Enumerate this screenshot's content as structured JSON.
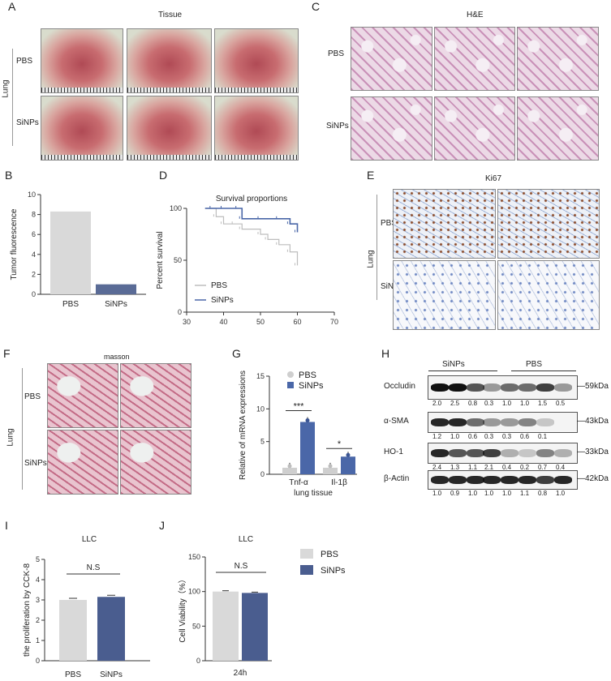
{
  "panels": {
    "A": "A",
    "B": "B",
    "C": "C",
    "D": "D",
    "E": "E",
    "F": "F",
    "G": "G",
    "H": "H",
    "I": "I",
    "J": "J"
  },
  "A": {
    "title": "Tissue",
    "organ": "Lung",
    "rows": [
      "PBS",
      "SiNPs"
    ]
  },
  "C": {
    "title": "H&E",
    "rows": [
      "PBS",
      "SiNPs"
    ]
  },
  "E": {
    "title": "Ki67",
    "organ": "Lung",
    "rows": [
      "PBS",
      "SiNPs"
    ]
  },
  "F": {
    "title": "masson",
    "organ": "Lung",
    "rows": [
      "PBS",
      "SiNPs"
    ]
  },
  "B": {
    "chart_data": {
      "type": "bar",
      "categories": [
        "PBS",
        "SiNPs"
      ],
      "values": [
        8.3,
        1.0
      ],
      "ylabel": "Tumor fluorescence",
      "ylim": [
        0,
        10
      ],
      "yticks": [
        "0",
        "2",
        "4",
        "6",
        "8",
        "10"
      ],
      "colors": [
        "#d9d9d9",
        "#5a6b96"
      ]
    }
  },
  "D": {
    "chart_data": {
      "type": "line",
      "title": "Survival proportions",
      "ylabel": "Percent survival",
      "xlim": [
        30,
        70
      ],
      "ylim": [
        0,
        100
      ],
      "xticks": [
        "30",
        "40",
        "50",
        "60",
        "70"
      ],
      "yticks": [
        "0",
        "50",
        "100"
      ],
      "series": [
        {
          "name": "PBS",
          "color": "#bdbdbd",
          "x": [
            35,
            38,
            40,
            43,
            45,
            50,
            52,
            55,
            58,
            60
          ],
          "y": [
            100,
            92,
            85,
            85,
            80,
            75,
            70,
            65,
            58,
            45
          ]
        },
        {
          "name": "SiNPs",
          "color": "#4a67a8",
          "x": [
            35,
            37,
            40,
            44,
            45,
            50,
            55,
            58,
            60
          ],
          "y": [
            100,
            100,
            100,
            100,
            90,
            90,
            90,
            85,
            77
          ]
        }
      ]
    }
  },
  "G": {
    "chart_data": {
      "type": "bar",
      "categories": [
        "Tnf-α",
        "Il-1β"
      ],
      "xlabel": "lung tissue",
      "ylabel": "Relative of mRNA expressions",
      "ylim": [
        0,
        15
      ],
      "yticks": [
        "0",
        "5",
        "10",
        "15"
      ],
      "series": [
        {
          "name": "PBS",
          "color": "#cfcfcf",
          "values": [
            1.0,
            1.0
          ]
        },
        {
          "name": "SiNPs",
          "color": "#4a67a8",
          "values": [
            8.0,
            2.7
          ]
        }
      ],
      "significance": [
        "***",
        "*"
      ]
    }
  },
  "H": {
    "groups": [
      "SiNPs",
      "PBS"
    ],
    "rows": [
      {
        "label": "Occludin",
        "kda": "59kDa",
        "values": [
          "2.0",
          "2.5",
          "0.8",
          "0.3",
          "1.0",
          "1.0",
          "1.5",
          "0.5"
        ]
      },
      {
        "label": "α-SMA",
        "kda": "43kDa",
        "values": [
          "1.2",
          "1.0",
          "0.6",
          "0.3",
          "0.3",
          "0.6",
          "0.1",
          ""
        ]
      },
      {
        "label": "HO-1",
        "kda": "33kDa",
        "values": [
          "2.4",
          "1.3",
          "1.1",
          "2.1",
          "0.4",
          "0.2",
          "0.7",
          "0.4"
        ]
      },
      {
        "label": "β-Actin",
        "kda": "42kDa",
        "values": [
          "1.0",
          "0.9",
          "1.0",
          "1.0",
          "1.0",
          "1.1",
          "0.8",
          "1.0"
        ]
      }
    ]
  },
  "I": {
    "chart_data": {
      "type": "bar",
      "title": "LLC",
      "categories": [
        "PBS",
        "SiNPs"
      ],
      "values": [
        3.0,
        3.15
      ],
      "ylabel": "the proliferation by CCK-8",
      "ylim": [
        0,
        5
      ],
      "yticks": [
        "0",
        "1",
        "2",
        "3",
        "4",
        "5"
      ],
      "significance": "N.S",
      "colors": [
        "#d9d9d9",
        "#4a5d8f"
      ]
    }
  },
  "J": {
    "chart_data": {
      "type": "bar",
      "title": "LLC",
      "categories": [
        "24h"
      ],
      "series": [
        {
          "name": "PBS",
          "color": "#d9d9d9",
          "values": [
            100
          ]
        },
        {
          "name": "SiNPs",
          "color": "#4a5d8f",
          "values": [
            98
          ]
        }
      ],
      "ylabel": "Cell Viability（%）",
      "ylim": [
        0,
        150
      ],
      "yticks": [
        "0",
        "50",
        "100",
        "150"
      ],
      "significance": "N.S"
    }
  }
}
